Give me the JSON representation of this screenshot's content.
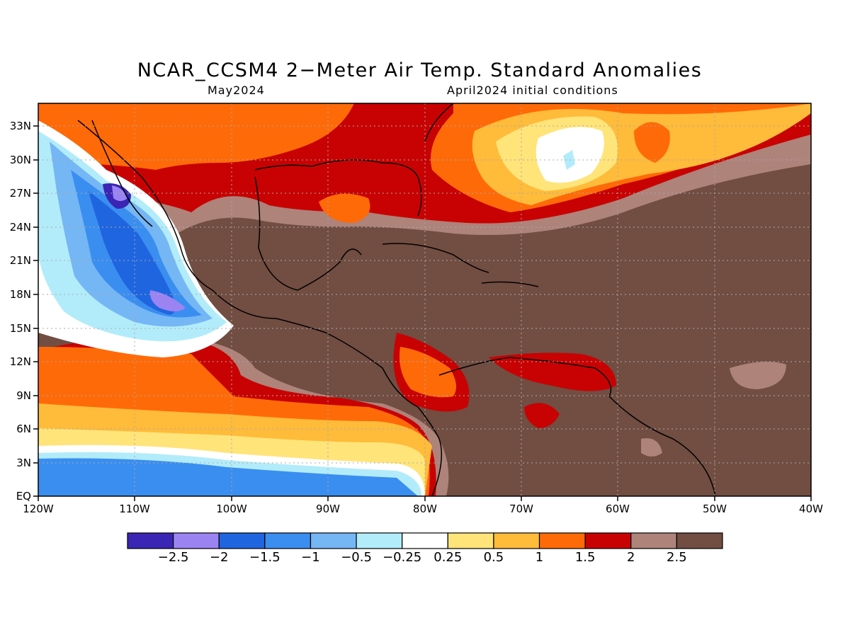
{
  "title": "NCAR_CCSM4 2−Meter Air Temp. Standard Anomalies",
  "subtitle_left": "May2024",
  "subtitle_right": "April2024 initial conditions",
  "y_ticks": [
    "33N",
    "30N",
    "27N",
    "24N",
    "21N",
    "18N",
    "15N",
    "12N",
    "9N",
    "6N",
    "3N",
    "EQ"
  ],
  "x_ticks": [
    "120W",
    "110W",
    "100W",
    "90W",
    "80W",
    "70W",
    "60W",
    "50W",
    "40W"
  ],
  "colorbar": {
    "colors": [
      "#3a25b4",
      "#9b84f2",
      "#2065e0",
      "#3a8ef0",
      "#75b6f5",
      "#b2ecfa",
      "#ffffff",
      "#ffe47a",
      "#ffbb3a",
      "#ff6a08",
      "#c80202",
      "#ad837a",
      "#714d42"
    ],
    "labels": [
      "−2.5",
      "−2",
      "−1.5",
      "−1",
      "−0.5",
      "−0.25",
      "0.25",
      "0.5",
      "1",
      "1.5",
      "2",
      "2.5"
    ]
  },
  "palette": {
    "deep_blue": "#3a25b4",
    "violet": "#9b84f2",
    "blue": "#2065e0",
    "mid_blue": "#3a8ef0",
    "light_blue": "#75b6f5",
    "pale_blue": "#b2ecfa",
    "white": "#ffffff",
    "pale_yellow": "#ffe47a",
    "yellow_orange": "#ffbb3a",
    "orange": "#ff6a08",
    "red": "#c80202",
    "tan": "#ad837a",
    "brown": "#714d42"
  }
}
